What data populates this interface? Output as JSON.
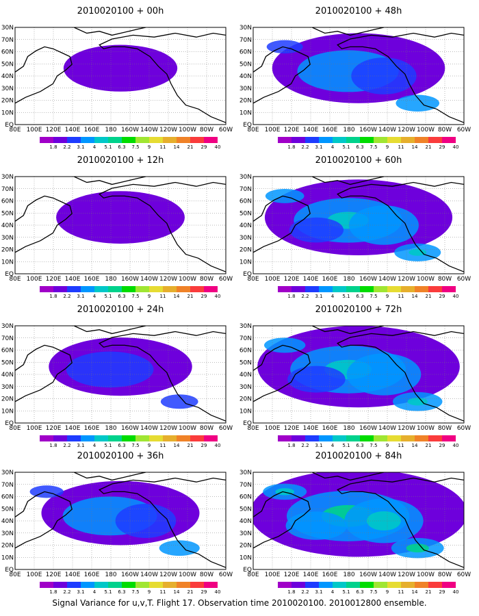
{
  "colorbar": {
    "labels": [
      "1.8",
      "2.2",
      "3.1",
      "4",
      "5.1",
      "6.3",
      "7.5",
      "9",
      "11",
      "14",
      "21",
      "29",
      "40"
    ],
    "colors": [
      "#a000c8",
      "#6e00dc",
      "#1e3cff",
      "#0096ff",
      "#00c8c8",
      "#00d28c",
      "#00dc00",
      "#a0e632",
      "#e6dc32",
      "#e6af2d",
      "#f08228",
      "#fa3c3c",
      "#f00082"
    ]
  },
  "longitude_labels": [
    "80E",
    "100E",
    "120E",
    "140E",
    "160E",
    "180",
    "160W",
    "140W",
    "120W",
    "100W",
    "80W",
    "60W"
  ],
  "latitude_labels": [
    "80N",
    "70N",
    "60N",
    "50N",
    "40N",
    "30N",
    "20N",
    "10N",
    "EQ"
  ],
  "latitude_labels_shown": [
    "30N",
    "70N",
    "60N",
    "50N",
    "40N",
    "30N",
    "20N",
    "10N",
    "EQ"
  ],
  "panels": [
    {
      "title": "2010020100 + 00h",
      "intensity": 0.2
    },
    {
      "title": "2010020100 + 48h",
      "intensity": 0.6
    },
    {
      "title": "2010020100 + 12h",
      "intensity": 0.3
    },
    {
      "title": "2010020100 + 60h",
      "intensity": 0.7
    },
    {
      "title": "2010020100 + 24h",
      "intensity": 0.4
    },
    {
      "title": "2010020100 + 72h",
      "intensity": 0.8
    },
    {
      "title": "2010020100 + 36h",
      "intensity": 0.5
    },
    {
      "title": "2010020100 + 84h",
      "intensity": 0.9
    }
  ],
  "caption": "Signal Variance for u,v,T. Flight 17. Observation time 2010020100. 2010012800 ensemble."
}
